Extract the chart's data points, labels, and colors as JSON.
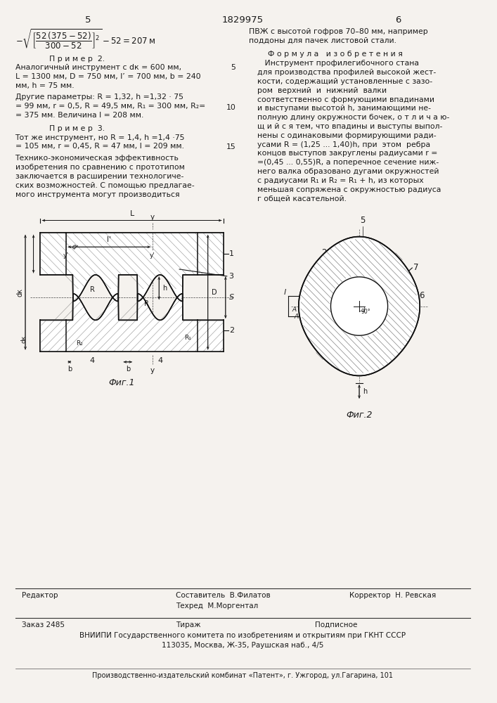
{
  "title": "1829975",
  "page_left": "5",
  "page_right": "6",
  "bg_color": "#f5f2ee",
  "text_color": "#1a1a1a",
  "bottom_section": {
    "editor": "Редактор",
    "compiler": "Составитель  В.Филатов",
    "corrector": "Корректор  Н. Ревская",
    "techred": "Техред  М.Моргентал",
    "order": "Заказ 2485",
    "print_run": "Тираж",
    "subscribed": "Подписное",
    "vniiipi": "ВНИИПИ Государственного комитета по изобретениям и открытиям при ГКНТ СССР",
    "address": "113035, Москва, Ж-35, Раушская наб., 4/5",
    "publisher": "Производственно-издательский комбинат «Патент», г. Ужгород, ул.Гагарина, 101"
  },
  "fig1_caption": "Фиг.1",
  "fig2_caption": "Фиг.2"
}
